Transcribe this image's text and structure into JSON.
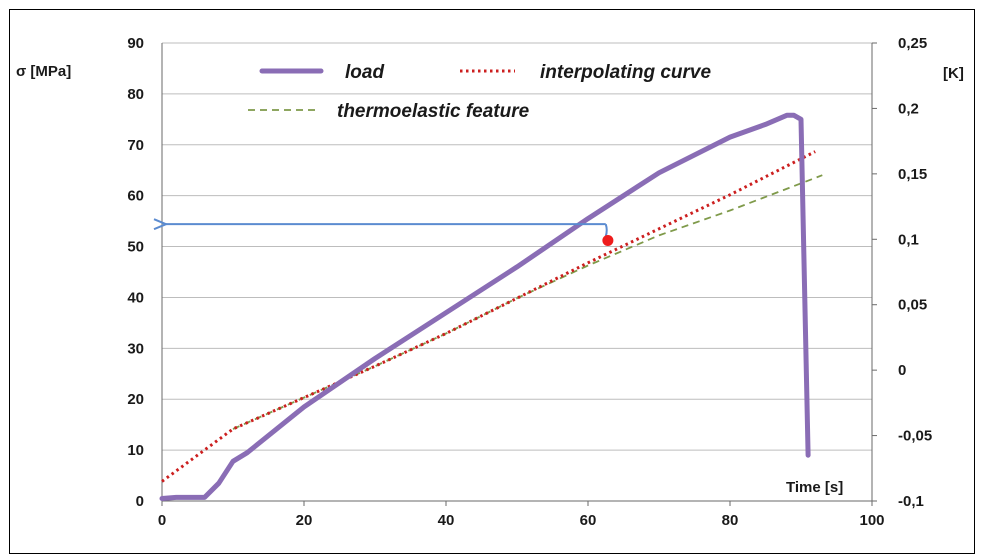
{
  "chart_data": {
    "type": "line",
    "xlabel": "Time [s]",
    "ylabel_left": "σ [MPa]",
    "ylabel_right": "[K]",
    "xlim": [
      0,
      100
    ],
    "ylim_left": [
      0,
      90
    ],
    "ylim_right": [
      -0.1,
      0.25
    ],
    "x_ticks": [
      "0",
      "20",
      "40",
      "60",
      "80",
      "100"
    ],
    "y_left_ticks": [
      "0",
      "10",
      "20",
      "30",
      "40",
      "50",
      "60",
      "70",
      "80",
      "90"
    ],
    "y_right_ticks": [
      "-0,1",
      "-0,05",
      "0",
      "0,05",
      "0,1",
      "0,15",
      "0,2",
      "0,25"
    ],
    "grid": "horizontal",
    "legend_placement": "top",
    "series": [
      {
        "name": "load",
        "axis": "left",
        "style": "solid",
        "color": "#8a6db5",
        "x": [
          0,
          2,
          6,
          8,
          10,
          12,
          16,
          20,
          30,
          40,
          50,
          60,
          70,
          80,
          85,
          88,
          89,
          90,
          91
        ],
        "y": [
          0.5,
          0.7,
          0.7,
          3.5,
          7.8,
          9.5,
          14.0,
          18.5,
          28.0,
          37.0,
          46.0,
          55.5,
          64.5,
          71.5,
          74.0,
          75.8,
          75.8,
          75.0,
          9.0
        ]
      },
      {
        "name": "interpolating curve",
        "axis": "right",
        "style": "dotted",
        "color": "#cc1f1f",
        "x": [
          0,
          10,
          20,
          30,
          40,
          50,
          60,
          70,
          80,
          92
        ],
        "y": [
          -0.085,
          -0.045,
          -0.021,
          0.003,
          0.028,
          0.055,
          0.082,
          0.108,
          0.134,
          0.167
        ]
      },
      {
        "name": "thermoelastic feature",
        "axis": "right",
        "style": "dashed",
        "color": "#7f9a4a",
        "x": [
          10,
          20,
          30,
          40,
          50,
          60,
          70,
          80,
          93
        ],
        "y": [
          -0.045,
          -0.021,
          0.003,
          0.028,
          0.055,
          0.08,
          0.103,
          0.122,
          0.149
        ]
      }
    ],
    "annotations": [
      {
        "type": "arrow",
        "from_x": 62.5,
        "to_x": 0,
        "y_left": 54.4,
        "color": "#5b8bd0"
      },
      {
        "type": "marker",
        "x": 62.8,
        "y_left": 51.2,
        "color": "#ee1c1c"
      }
    ]
  }
}
